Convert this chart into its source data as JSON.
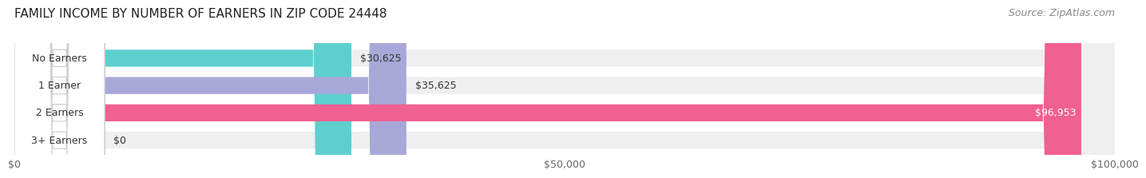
{
  "title": "FAMILY INCOME BY NUMBER OF EARNERS IN ZIP CODE 24448",
  "source": "Source: ZipAtlas.com",
  "categories": [
    "No Earners",
    "1 Earner",
    "2 Earners",
    "3+ Earners"
  ],
  "values": [
    30625,
    35625,
    96953,
    0
  ],
  "bar_colors": [
    "#5ecfcf",
    "#a8a8d8",
    "#f06090",
    "#f5c896"
  ],
  "bar_bg_color": "#efefef",
  "xlim": [
    0,
    100000
  ],
  "xticks": [
    0,
    50000,
    100000
  ],
  "xtick_labels": [
    "$0",
    "$50,000",
    "$100,000"
  ],
  "title_fontsize": 11,
  "source_fontsize": 9,
  "bar_label_fontsize": 9,
  "category_fontsize": 9,
  "figure_bg_color": "#ffffff",
  "axes_bg_color": "#ffffff"
}
